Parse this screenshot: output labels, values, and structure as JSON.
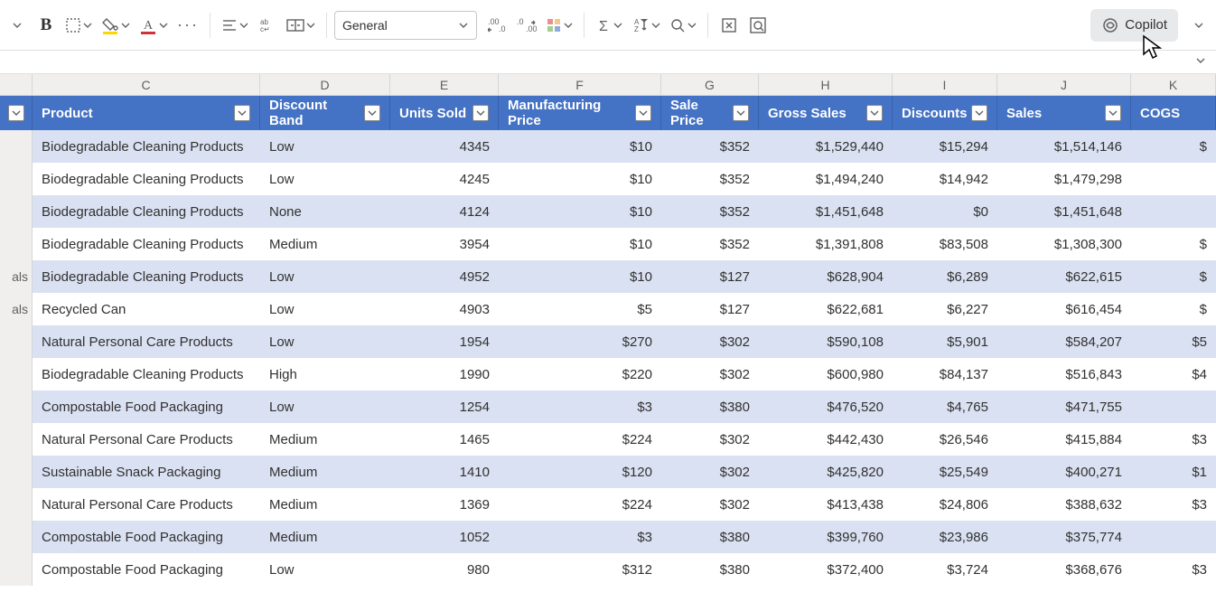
{
  "ribbon": {
    "number_format": "General",
    "copilot_label": "Copilot"
  },
  "column_letters": [
    "C",
    "D",
    "E",
    "F",
    "G",
    "H",
    "I",
    "J",
    "K"
  ],
  "headers": {
    "c": "Product",
    "d": "Discount Band",
    "e": "Units Sold",
    "f": "Manufacturing Price",
    "g": "Sale Price",
    "h": "Gross Sales",
    "i": "Discounts",
    "j": "Sales",
    "k": "COGS"
  },
  "row_label_partial": [
    "",
    "",
    "",
    "",
    "als",
    "als",
    "",
    "",
    "",
    "",
    "",
    "",
    "",
    ""
  ],
  "rows": [
    {
      "product": "Biodegradable Cleaning Products",
      "band": "Low",
      "units": "4345",
      "mfg": "$10",
      "sale": "$352",
      "gross": "$1,529,440",
      "disc": "$15,294",
      "sales": "$1,514,146",
      "cogs": "$"
    },
    {
      "product": "Biodegradable Cleaning Products",
      "band": "Low",
      "units": "4245",
      "mfg": "$10",
      "sale": "$352",
      "gross": "$1,494,240",
      "disc": "$14,942",
      "sales": "$1,479,298",
      "cogs": ""
    },
    {
      "product": "Biodegradable Cleaning Products",
      "band": "None",
      "units": "4124",
      "mfg": "$10",
      "sale": "$352",
      "gross": "$1,451,648",
      "disc": "$0",
      "sales": "$1,451,648",
      "cogs": ""
    },
    {
      "product": "Biodegradable Cleaning Products",
      "band": "Medium",
      "units": "3954",
      "mfg": "$10",
      "sale": "$352",
      "gross": "$1,391,808",
      "disc": "$83,508",
      "sales": "$1,308,300",
      "cogs": "$"
    },
    {
      "product": "Biodegradable Cleaning Products",
      "band": "Low",
      "units": "4952",
      "mfg": "$10",
      "sale": "$127",
      "gross": "$628,904",
      "disc": "$6,289",
      "sales": "$622,615",
      "cogs": "$"
    },
    {
      "product": "Recycled Can",
      "band": "Low",
      "units": "4903",
      "mfg": "$5",
      "sale": "$127",
      "gross": "$622,681",
      "disc": "$6,227",
      "sales": "$616,454",
      "cogs": "$"
    },
    {
      "product": "Natural Personal Care Products",
      "band": "Low",
      "units": "1954",
      "mfg": "$270",
      "sale": "$302",
      "gross": "$590,108",
      "disc": "$5,901",
      "sales": "$584,207",
      "cogs": "$5"
    },
    {
      "product": "Biodegradable Cleaning Products",
      "band": "High",
      "units": "1990",
      "mfg": "$220",
      "sale": "$302",
      "gross": "$600,980",
      "disc": "$84,137",
      "sales": "$516,843",
      "cogs": "$4"
    },
    {
      "product": "Compostable Food Packaging",
      "band": "Low",
      "units": "1254",
      "mfg": "$3",
      "sale": "$380",
      "gross": "$476,520",
      "disc": "$4,765",
      "sales": "$471,755",
      "cogs": ""
    },
    {
      "product": "Natural Personal Care Products",
      "band": "Medium",
      "units": "1465",
      "mfg": "$224",
      "sale": "$302",
      "gross": "$442,430",
      "disc": "$26,546",
      "sales": "$415,884",
      "cogs": "$3"
    },
    {
      "product": "Sustainable Snack Packaging",
      "band": "Medium",
      "units": "1410",
      "mfg": "$120",
      "sale": "$302",
      "gross": "$425,820",
      "disc": "$25,549",
      "sales": "$400,271",
      "cogs": "$1"
    },
    {
      "product": "Natural Personal Care Products",
      "band": "Medium",
      "units": "1369",
      "mfg": "$224",
      "sale": "$302",
      "gross": "$413,438",
      "disc": "$24,806",
      "sales": "$388,632",
      "cogs": "$3"
    },
    {
      "product": "Compostable Food Packaging",
      "band": "Medium",
      "units": "1052",
      "mfg": "$3",
      "sale": "$380",
      "gross": "$399,760",
      "disc": "$23,986",
      "sales": "$375,774",
      "cogs": ""
    },
    {
      "product": "Compostable Food Packaging",
      "band": "Low",
      "units": "980",
      "mfg": "$312",
      "sale": "$380",
      "gross": "$372,400",
      "disc": "$3,724",
      "sales": "$368,676",
      "cogs": "$3"
    }
  ],
  "colors": {
    "header_bg": "#4472c4",
    "band_bg": "#d9e1f2",
    "yellow": "#ffd500",
    "red": "#d13438"
  }
}
